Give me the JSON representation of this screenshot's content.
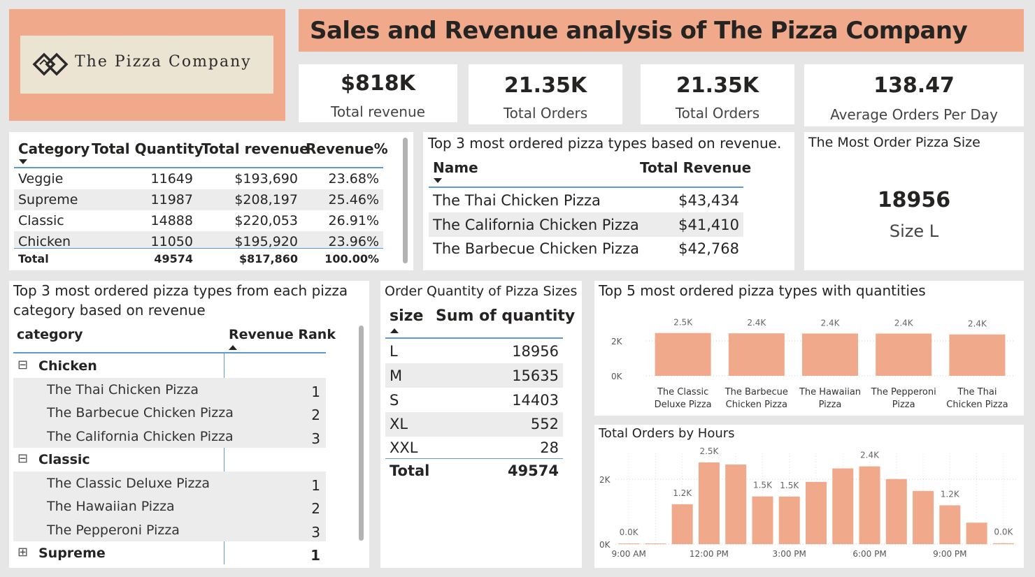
{
  "logo": {
    "text": "The Pizza Company",
    "icon": "interlocked-diamond-logo"
  },
  "title": "Sales and Revenue analysis of The Pizza Company",
  "kpis": [
    {
      "value": "$818K",
      "label": "Total revenue"
    },
    {
      "value": "21.35K",
      "label": "Total Orders"
    },
    {
      "value": "21.35K",
      "label": "Total Orders"
    },
    {
      "value": "138.47",
      "label": "Average Orders Per Day"
    }
  ],
  "category_table": {
    "headers": [
      "Category",
      "Total Quantity",
      "Total revenue",
      "Revenue%"
    ],
    "rows": [
      {
        "category": "Veggie",
        "quantity": "11649",
        "revenue": "$193,690",
        "pct": "23.68%"
      },
      {
        "category": "Supreme",
        "quantity": "11987",
        "revenue": "$208,197",
        "pct": "25.46%"
      },
      {
        "category": "Classic",
        "quantity": "14888",
        "revenue": "$220,053",
        "pct": "26.91%"
      },
      {
        "category": "Chicken",
        "quantity": "11050",
        "revenue": "$195,920",
        "pct": "23.96%"
      }
    ],
    "total": {
      "label": "Total",
      "quantity": "49574",
      "revenue": "$817,860",
      "pct": "100.00%"
    }
  },
  "top3_revenue": {
    "title": "Top 3 most ordered pizza types based on revenue.",
    "headers": [
      "Name",
      "Total Revenue"
    ],
    "rows": [
      {
        "name": "The Thai Chicken Pizza",
        "revenue": "$43,434"
      },
      {
        "name": "The California Chicken Pizza",
        "revenue": "$41,410"
      },
      {
        "name": "The Barbecue Chicken Pizza",
        "revenue": "$42,768"
      }
    ]
  },
  "most_size": {
    "title": "The Most Order Pizza Size",
    "value": "18956",
    "label": "Size L"
  },
  "category_rank": {
    "title_line1": "Top 3 most ordered pizza types from each pizza",
    "title_line2": "category based on revenue",
    "headers": [
      "category",
      "Revenue Rank"
    ],
    "rows": [
      {
        "kind": "group",
        "expander": "⊟",
        "label": "Chicken",
        "rank": ""
      },
      {
        "kind": "item",
        "label": "The Thai Chicken Pizza",
        "rank": "1"
      },
      {
        "kind": "item",
        "label": "The Barbecue Chicken Pizza",
        "rank": "2"
      },
      {
        "kind": "item",
        "label": "The California Chicken Pizza",
        "rank": "3"
      },
      {
        "kind": "group",
        "expander": "⊟",
        "label": "Classic",
        "rank": ""
      },
      {
        "kind": "item",
        "label": "The Classic Deluxe Pizza",
        "rank": "1"
      },
      {
        "kind": "item",
        "label": "The Hawaiian Pizza",
        "rank": "2"
      },
      {
        "kind": "item",
        "label": "The Pepperoni Pizza",
        "rank": "3"
      },
      {
        "kind": "group",
        "expander": "⊞",
        "label": "Supreme",
        "rank": "1"
      }
    ]
  },
  "size_table": {
    "title": "Order Quantity of Pizza Sizes",
    "headers": [
      "size",
      "Sum of quantity"
    ],
    "rows": [
      {
        "size": "L",
        "qty": "18956"
      },
      {
        "size": "M",
        "qty": "15635"
      },
      {
        "size": "S",
        "qty": "14403"
      },
      {
        "size": "XL",
        "qty": "552"
      },
      {
        "size": "XXL",
        "qty": "28"
      }
    ],
    "total": {
      "label": "Total",
      "qty": "49574"
    }
  },
  "chart_data": [
    {
      "type": "bar",
      "title": "Top 5 most ordered pizza types with quantities",
      "categories": [
        "The Classic Deluxe Pizza",
        "The Barbecue Chicken Pizza",
        "The Hawaiian Pizza",
        "The Pepperoni Pizza",
        "The Thai Chicken Pizza"
      ],
      "category_lines": [
        [
          "The Classic",
          "Deluxe Pizza"
        ],
        [
          "The Barbecue",
          "Chicken Pizza"
        ],
        [
          "The Hawaiian",
          "Pizza"
        ],
        [
          "The Pepperoni",
          "Pizza"
        ],
        [
          "The Thai",
          "Chicken Pizza"
        ]
      ],
      "values": [
        2453,
        2432,
        2422,
        2418,
        2371
      ],
      "data_labels": [
        "2.5K",
        "2.4K",
        "2.4K",
        "2.4K",
        "2.4K"
      ],
      "yticks": [
        {
          "value": 0,
          "label": "0K"
        },
        {
          "value": 2000,
          "label": "2K"
        }
      ],
      "ylim": [
        0,
        3000
      ],
      "grid": true,
      "color": "#f0a98a"
    },
    {
      "type": "bar",
      "title": "Total Orders by Hours",
      "categories": [
        9,
        10,
        11,
        12,
        13,
        14,
        15,
        16,
        17,
        18,
        19,
        20,
        21,
        22,
        23
      ],
      "values": [
        1,
        8,
        1231,
        2520,
        2455,
        1472,
        1468,
        1920,
        2336,
        2399,
        2009,
        1642,
        1198,
        663,
        28
      ],
      "data_labels": [
        "0.0K",
        "",
        "1.2K",
        "2.5K",
        "",
        "1.5K",
        "1.5K",
        "",
        "",
        "2.4K",
        "",
        "",
        "1.2K",
        "",
        "0.0K"
      ],
      "xticks": [
        {
          "value": 9,
          "label": "9:00 AM"
        },
        {
          "value": 12,
          "label": "12:00 PM"
        },
        {
          "value": 15,
          "label": "3:00 PM"
        },
        {
          "value": 18,
          "label": "6:00 PM"
        },
        {
          "value": 21,
          "label": "9:00 PM"
        }
      ],
      "yticks": [
        {
          "value": 0,
          "label": "0K"
        },
        {
          "value": 2000,
          "label": "2K"
        }
      ],
      "ylim": [
        0,
        2800
      ],
      "grid": true,
      "color": "#f0a98a"
    }
  ]
}
